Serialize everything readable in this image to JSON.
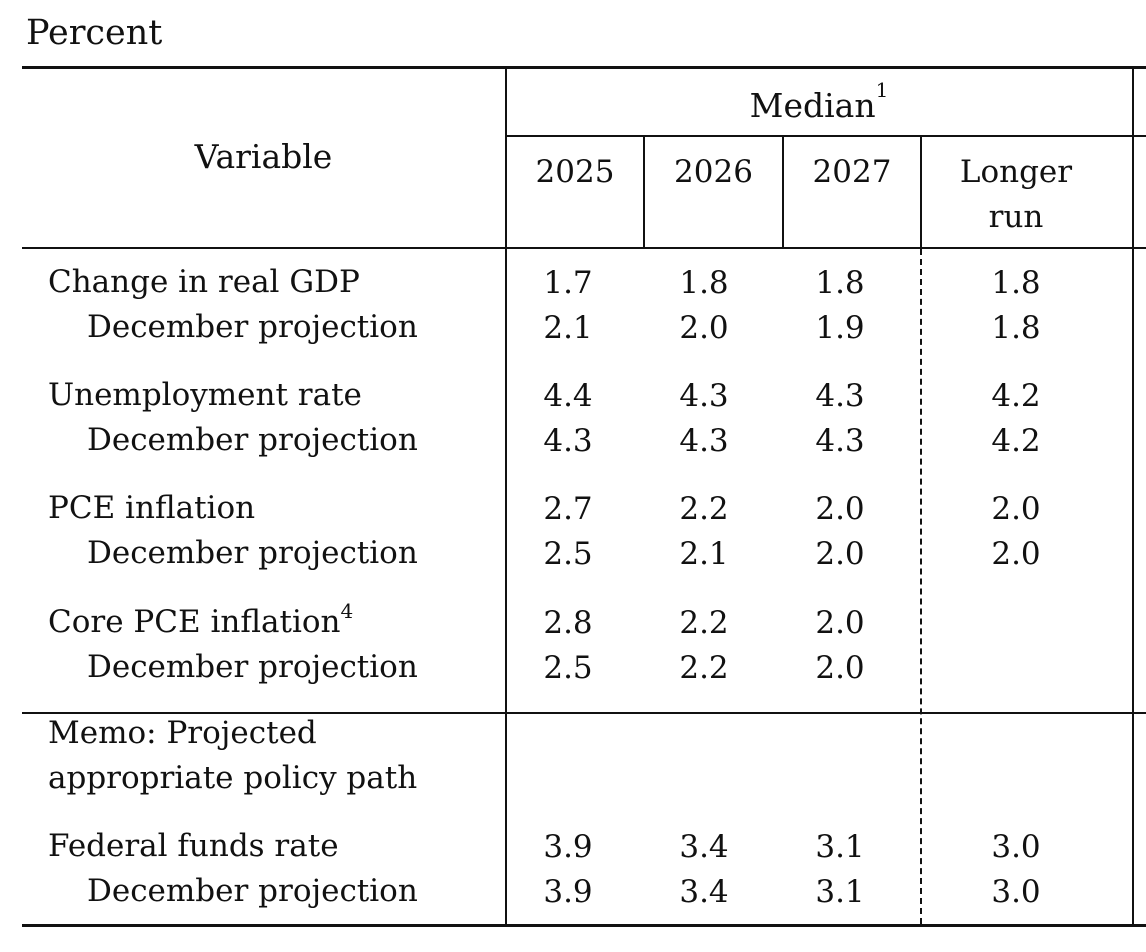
{
  "unit_label": "Percent",
  "header": {
    "variable": "Variable",
    "group": "Median",
    "group_note": "1",
    "years": [
      "2025",
      "2026",
      "2027"
    ],
    "longer_run_1": "Longer",
    "longer_run_2": "run"
  },
  "rows": [
    {
      "label": "Change in real GDP",
      "values": [
        "1.7",
        "1.8",
        "1.8",
        "1.8"
      ]
    },
    {
      "label": "December projection",
      "values": [
        "2.1",
        "2.0",
        "1.9",
        "1.8"
      ]
    },
    {
      "label": "Unemployment rate",
      "values": [
        "4.4",
        "4.3",
        "4.3",
        "4.2"
      ]
    },
    {
      "label": "December projection",
      "values": [
        "4.3",
        "4.3",
        "4.3",
        "4.2"
      ]
    },
    {
      "label": "PCE inflation",
      "values": [
        "2.7",
        "2.2",
        "2.0",
        "2.0"
      ]
    },
    {
      "label": "December projection",
      "values": [
        "2.5",
        "2.1",
        "2.0",
        "2.0"
      ]
    },
    {
      "label": "Core PCE inflation",
      "note": "4",
      "values": [
        "2.8",
        "2.2",
        "2.0",
        ""
      ]
    },
    {
      "label": "December projection",
      "values": [
        "2.5",
        "2.2",
        "2.0",
        ""
      ]
    }
  ],
  "memo": {
    "line1": "Memo: Projected",
    "line2": "appropriate policy path"
  },
  "memo_rows": [
    {
      "label": "Federal funds rate",
      "values": [
        "3.9",
        "3.4",
        "3.1",
        "3.0"
      ]
    },
    {
      "label": "December projection",
      "values": [
        "3.9",
        "3.4",
        "3.1",
        "3.0"
      ]
    }
  ]
}
